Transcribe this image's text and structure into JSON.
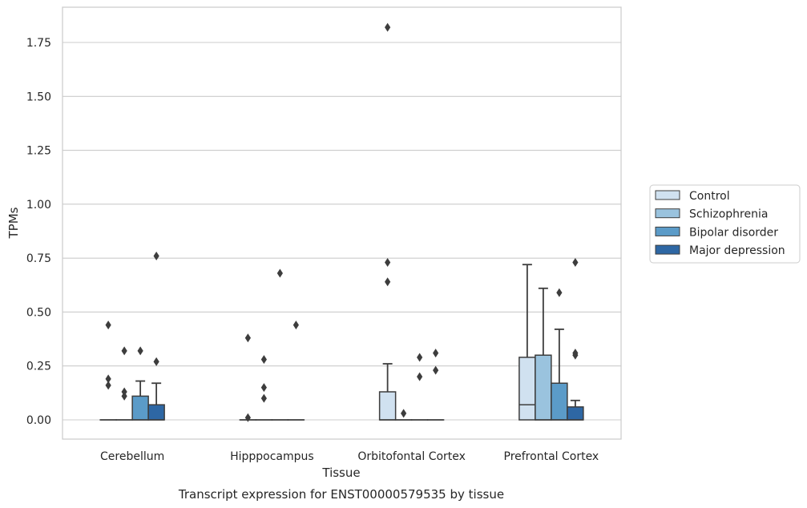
{
  "chart_data": {
    "type": "box",
    "xlabel": "Tissue",
    "ylabel": "TPMs",
    "caption": "Transcript expression for ENST00000579535 by tissue",
    "categories": [
      "Cerebellum",
      "Hipppocampus",
      "Orbitofontal Cortex",
      "Prefrontal Cortex"
    ],
    "ylim": [
      -0.09,
      1.92
    ],
    "yticks": [
      "0.00",
      "0.25",
      "0.50",
      "0.75",
      "1.00",
      "1.25",
      "1.50",
      "1.75"
    ],
    "grid": true,
    "legend_position": "right",
    "series": [
      {
        "name": "Control",
        "color": "#d0e1f0",
        "boxes": [
          {
            "q1": 0,
            "median": 0,
            "q3": 0,
            "whislo": 0,
            "whishi": 0,
            "fliers": [
              0.44,
              0.19,
              0.16
            ]
          },
          {
            "q1": 0,
            "median": 0,
            "q3": 0,
            "whislo": 0,
            "whishi": 0,
            "fliers": [
              0.38,
              0.01
            ]
          },
          {
            "q1": 0,
            "median": 0,
            "q3": 0.13,
            "whislo": 0,
            "whishi": 0.26,
            "fliers": [
              1.82,
              0.73,
              0.64
            ]
          },
          {
            "q1": 0,
            "median": 0.07,
            "q3": 0.29,
            "whislo": 0,
            "whishi": 0.72,
            "fliers": []
          }
        ]
      },
      {
        "name": "Schizophrenia",
        "color": "#9ac3de",
        "boxes": [
          {
            "q1": 0,
            "median": 0,
            "q3": 0,
            "whislo": 0,
            "whishi": 0,
            "fliers": [
              0.32,
              0.13,
              0.11
            ]
          },
          {
            "q1": 0,
            "median": 0,
            "q3": 0,
            "whislo": 0,
            "whishi": 0,
            "fliers": [
              0.28,
              0.15,
              0.1
            ]
          },
          {
            "q1": 0,
            "median": 0,
            "q3": 0,
            "whislo": 0,
            "whishi": 0,
            "fliers": [
              0.03
            ]
          },
          {
            "q1": 0,
            "median": 0,
            "q3": 0.3,
            "whislo": 0,
            "whishi": 0.61,
            "fliers": []
          }
        ]
      },
      {
        "name": "Bipolar disorder",
        "color": "#5b9bc8",
        "boxes": [
          {
            "q1": 0,
            "median": 0,
            "q3": 0.11,
            "whislo": 0,
            "whishi": 0.18,
            "fliers": [
              0.32
            ]
          },
          {
            "q1": 0,
            "median": 0,
            "q3": 0,
            "whislo": 0,
            "whishi": 0,
            "fliers": [
              0.68
            ]
          },
          {
            "q1": 0,
            "median": 0,
            "q3": 0,
            "whislo": 0,
            "whishi": 0,
            "fliers": [
              0.29,
              0.2
            ]
          },
          {
            "q1": 0,
            "median": 0,
            "q3": 0.17,
            "whislo": 0,
            "whishi": 0.42,
            "fliers": [
              0.59
            ]
          }
        ]
      },
      {
        "name": "Major depression",
        "color": "#2e67a4",
        "boxes": [
          {
            "q1": 0,
            "median": 0,
            "q3": 0.07,
            "whislo": 0,
            "whishi": 0.17,
            "fliers": [
              0.76,
              0.27
            ]
          },
          {
            "q1": 0,
            "median": 0,
            "q3": 0,
            "whislo": 0,
            "whishi": 0,
            "fliers": [
              0.44
            ]
          },
          {
            "q1": 0,
            "median": 0,
            "q3": 0,
            "whislo": 0,
            "whishi": 0,
            "fliers": [
              0.31,
              0.23
            ]
          },
          {
            "q1": 0,
            "median": 0,
            "q3": 0.06,
            "whislo": 0,
            "whishi": 0.09,
            "fliers": [
              0.73,
              0.31,
              0.3
            ]
          }
        ]
      }
    ]
  }
}
